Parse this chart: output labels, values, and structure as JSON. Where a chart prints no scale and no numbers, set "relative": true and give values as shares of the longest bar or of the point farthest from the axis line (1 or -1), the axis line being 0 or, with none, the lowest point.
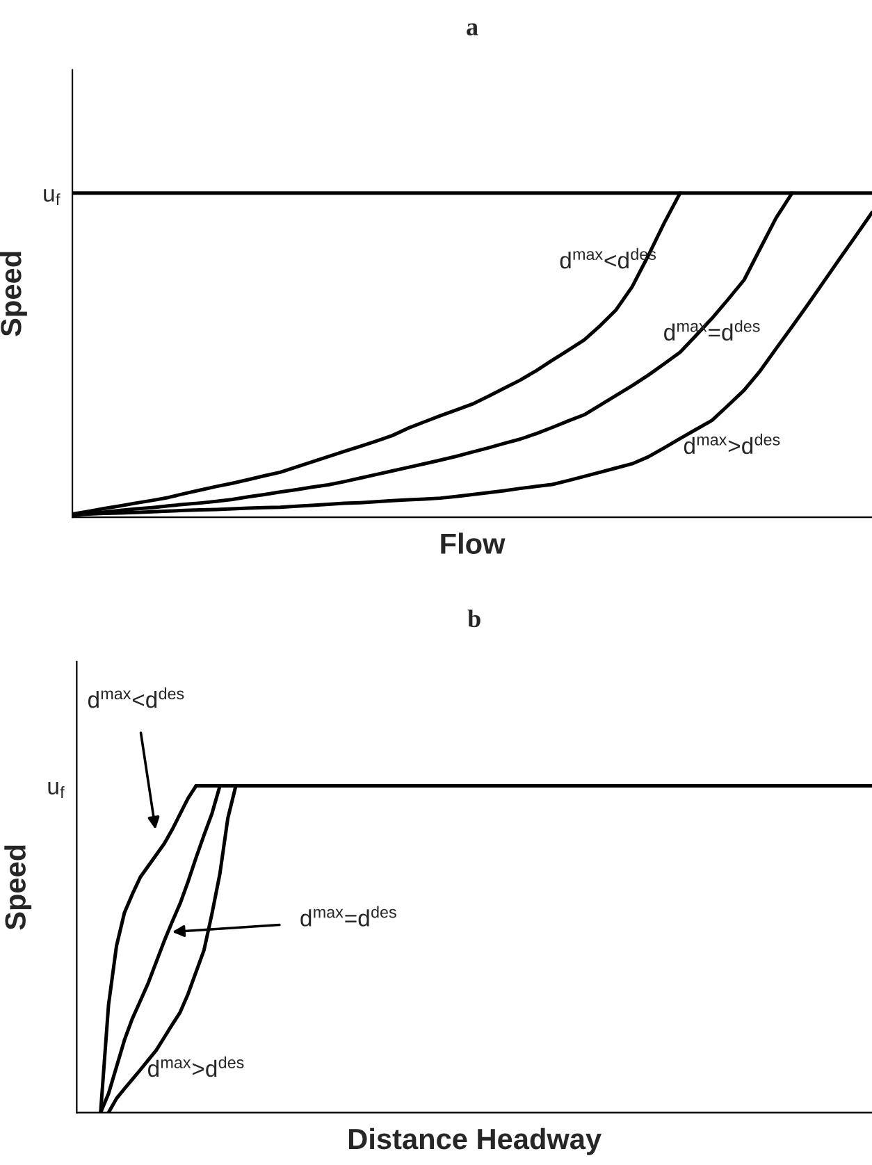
{
  "chart_data": [
    {
      "type": "line",
      "title": "a",
      "xlabel": "Flow",
      "ylabel": "Speed",
      "relative": true,
      "grid": false,
      "legend": false,
      "marker": "none",
      "line_style": "solid",
      "color": "#000000",
      "categories": [
        null,
        null,
        null,
        null,
        null,
        null,
        null,
        null,
        null,
        null,
        null,
        null,
        null,
        null,
        null,
        null,
        null,
        null,
        null,
        null,
        null,
        null,
        null,
        null,
        null,
        null,
        null,
        null,
        null,
        null,
        null,
        null,
        null,
        null,
        null,
        null,
        null,
        null,
        null,
        null,
        null,
        null,
        null,
        null,
        null,
        null,
        null,
        null,
        null,
        null,
        null
      ],
      "series": [
        {
          "values": [
            1,
            1,
            1,
            1,
            1,
            1,
            1,
            1,
            1,
            1,
            1,
            1,
            1,
            1,
            1,
            1,
            1,
            1,
            1,
            1,
            1,
            1,
            1,
            1,
            1,
            1,
            1,
            1,
            1,
            1,
            1,
            1,
            1,
            1,
            1,
            1,
            1,
            1,
            1,
            1,
            1,
            1,
            1,
            1,
            1,
            1,
            1,
            1,
            1,
            1,
            1
          ]
        },
        {
          "values": [
            0.01,
            0.018,
            0.027,
            0.035,
            0.044,
            0.052,
            0.061,
            0.073,
            0.084,
            0.095,
            0.105,
            0.116,
            0.128,
            0.139,
            0.155,
            0.171,
            0.187,
            0.203,
            0.219,
            0.235,
            0.252,
            0.275,
            0.294,
            0.313,
            0.331,
            0.349,
            0.373,
            0.398,
            0.423,
            0.452,
            0.484,
            0.515,
            0.547,
            0.591,
            0.64,
            0.711,
            0.806,
            0.907,
            1,
            null,
            null,
            null,
            null,
            null,
            null,
            null,
            null,
            null,
            null,
            null,
            null
          ]
        },
        {
          "values": [
            0.007,
            0.011,
            0.016,
            0.021,
            0.026,
            0.03,
            0.035,
            0.04,
            0.044,
            0.049,
            0.055,
            0.063,
            0.07,
            0.078,
            0.085,
            0.093,
            0.1,
            0.11,
            0.121,
            0.132,
            0.143,
            0.154,
            0.165,
            0.176,
            0.188,
            0.201,
            0.214,
            0.228,
            0.241,
            0.258,
            0.277,
            0.297,
            0.316,
            0.346,
            0.376,
            0.406,
            0.438,
            0.473,
            0.509,
            0.561,
            0.614,
            0.672,
            0.732,
            0.828,
            0.923,
            1,
            null,
            null,
            null,
            null,
            null
          ]
        },
        {
          "values": [
            0.008,
            0.01,
            0.012,
            0.013,
            0.015,
            0.017,
            0.019,
            0.021,
            0.023,
            0.024,
            0.026,
            0.028,
            0.03,
            0.031,
            0.034,
            0.037,
            0.04,
            0.043,
            0.045,
            0.048,
            0.051,
            0.054,
            0.056,
            0.059,
            0.064,
            0.07,
            0.076,
            0.082,
            0.089,
            0.095,
            0.101,
            0.113,
            0.126,
            0.139,
            0.152,
            0.165,
            0.186,
            0.214,
            0.243,
            0.271,
            0.299,
            0.345,
            0.392,
            0.451,
            0.52,
            0.588,
            0.657,
            0.728,
            0.799,
            0.869,
            0.94
          ]
        }
      ],
      "annotations": [
        "u$_{f}$",
        "d$^{max}$<d$^{des}$",
        "d$^{max}$=d$^{des}$",
        "d$^{max}$>d$^{des}$"
      ]
    },
    {
      "type": "line",
      "title": "b",
      "xlabel": "Distance Headway",
      "ylabel": "Speed",
      "relative": true,
      "grid": false,
      "legend": false,
      "marker": "none",
      "line_style": "solid",
      "color": "#000000",
      "categories": [
        null,
        null,
        null,
        null,
        null,
        null,
        null,
        null,
        null,
        null,
        null,
        null,
        null,
        null,
        null,
        null,
        null,
        null,
        null,
        null,
        null,
        null,
        null,
        null,
        null,
        null,
        null,
        null,
        null,
        null,
        null,
        null,
        null,
        null,
        null,
        null,
        null,
        null,
        null,
        null,
        null,
        null,
        null,
        null,
        null,
        null,
        null,
        null,
        null,
        null,
        null,
        null,
        null,
        null,
        null,
        null,
        null,
        null,
        null,
        null,
        null,
        null,
        null,
        null,
        null,
        null,
        null,
        null,
        null,
        null,
        null,
        null,
        null,
        null,
        null,
        null,
        null,
        null,
        null,
        null,
        null,
        null,
        null,
        null,
        null,
        null,
        null,
        null,
        null,
        null,
        null,
        null,
        null,
        null,
        null,
        null,
        null,
        null,
        null,
        null,
        null
      ],
      "series": [
        {
          "values": [
            null,
            null,
            null,
            null,
            null,
            null,
            null,
            null,
            null,
            null,
            null,
            null,
            null,
            null,
            null,
            1,
            1,
            1,
            1,
            1,
            1,
            1,
            1,
            1,
            1,
            1,
            1,
            1,
            1,
            1,
            1,
            1,
            1,
            1,
            1,
            1,
            1,
            1,
            1,
            1,
            1,
            1,
            1,
            1,
            1,
            1,
            1,
            1,
            1,
            1,
            1,
            1,
            1,
            1,
            1,
            1,
            1,
            1,
            1,
            1,
            1,
            1,
            1,
            1,
            1,
            1,
            1,
            1,
            1,
            1,
            1,
            1,
            1,
            1,
            1,
            1,
            1,
            1,
            1,
            1,
            1,
            1,
            1,
            1,
            1,
            1,
            1,
            1,
            1,
            1,
            1,
            1,
            1,
            1,
            1,
            1,
            1,
            1,
            1,
            1,
            1
          ]
        },
        {
          "values": [
            null,
            null,
            null,
            0,
            0.33,
            0.51,
            0.612,
            0.669,
            0.721,
            0.755,
            0.789,
            0.823,
            0.866,
            0.914,
            0.962,
            1,
            null,
            null,
            null,
            null,
            null,
            null,
            null,
            null,
            null,
            null,
            null,
            null,
            null,
            null,
            null,
            null,
            null,
            null,
            null,
            null,
            null,
            null,
            null,
            null,
            null,
            null,
            null,
            null,
            null,
            null,
            null,
            null,
            null,
            null,
            null,
            null,
            null,
            null,
            null,
            null,
            null,
            null,
            null,
            null,
            null,
            null,
            null,
            null,
            null,
            null,
            null,
            null,
            null,
            null,
            null,
            null,
            null,
            null,
            null,
            null,
            null,
            null,
            null,
            null,
            null,
            null,
            null,
            null,
            null,
            null,
            null,
            null,
            null,
            null,
            null,
            null,
            null,
            null,
            null,
            null,
            null,
            null,
            null,
            null,
            null
          ]
        },
        {
          "values": [
            null,
            null,
            null,
            0,
            0.058,
            0.14,
            0.222,
            0.288,
            0.342,
            0.397,
            0.461,
            0.525,
            0.584,
            0.64,
            0.707,
            0.78,
            0.849,
            0.915,
            1,
            null,
            null,
            null,
            null,
            null,
            null,
            null,
            null,
            null,
            null,
            null,
            null,
            null,
            null,
            null,
            null,
            null,
            null,
            null,
            null,
            null,
            null,
            null,
            null,
            null,
            null,
            null,
            null,
            null,
            null,
            null,
            null,
            null,
            null,
            null,
            null,
            null,
            null,
            null,
            null,
            null,
            null,
            null,
            null,
            null,
            null,
            null,
            null,
            null,
            null,
            null,
            null,
            null,
            null,
            null,
            null,
            null,
            null,
            null,
            null,
            null,
            null,
            null,
            null,
            null,
            null,
            null,
            null,
            null,
            null,
            null,
            null,
            null,
            null,
            null,
            null,
            null,
            null,
            null,
            null,
            null,
            null
          ]
        },
        {
          "values": [
            null,
            null,
            null,
            null,
            0,
            0.043,
            0.073,
            0.102,
            0.131,
            0.161,
            0.191,
            0.23,
            0.269,
            0.307,
            0.363,
            0.43,
            0.497,
            0.608,
            0.731,
            0.901,
            1,
            null,
            null,
            null,
            null,
            null,
            null,
            null,
            null,
            null,
            null,
            null,
            null,
            null,
            null,
            null,
            null,
            null,
            null,
            null,
            null,
            null,
            null,
            null,
            null,
            null,
            null,
            null,
            null,
            null,
            null,
            null,
            null,
            null,
            null,
            null,
            null,
            null,
            null,
            null,
            null,
            null,
            null,
            null,
            null,
            null,
            null,
            null,
            null,
            null,
            null,
            null,
            null,
            null,
            null,
            null,
            null,
            null,
            null,
            null,
            null,
            null,
            null,
            null,
            null,
            null,
            null,
            null,
            null,
            null,
            null,
            null,
            null,
            null,
            null,
            null,
            null,
            null,
            null,
            null,
            null
          ]
        }
      ],
      "annotations": [
        "u$_{f}$",
        "d$^{max}$<d$^{des}$",
        "d$^{max}$=d$^{des}$",
        "d$^{max}$>d$^{des}$"
      ]
    }
  ]
}
